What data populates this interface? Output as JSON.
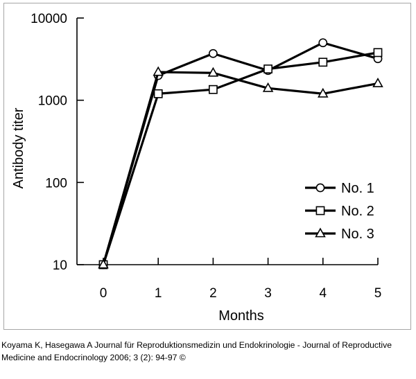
{
  "chart_data": {
    "type": "line",
    "xlabel": "Months",
    "ylabel": "Antibody  titer",
    "x": [
      0,
      1,
      2,
      3,
      4,
      5
    ],
    "xlim": [
      0,
      5
    ],
    "yscale": "log",
    "ylim": [
      10,
      10000
    ],
    "y_ticks": [
      10,
      100,
      1000,
      10000
    ],
    "y_tick_labels": [
      "10",
      "100",
      "1000",
      "10000"
    ],
    "x_tick_labels": [
      "0",
      "1",
      "2",
      "3",
      "4",
      "5"
    ],
    "legend_position": "lower-right",
    "grid": false,
    "series": [
      {
        "name": "No. 1",
        "marker": "circle",
        "values": [
          10,
          2000,
          3700,
          2300,
          5000,
          3200
        ]
      },
      {
        "name": "No. 2",
        "marker": "square",
        "values": [
          10,
          1200,
          1350,
          2400,
          2900,
          3800
        ]
      },
      {
        "name": "No. 3",
        "marker": "triangle",
        "values": [
          10,
          2200,
          2150,
          1400,
          1200,
          1600
        ]
      }
    ]
  },
  "caption": "Koyama K, Hasegawa A Journal für Reproduktionsmedizin und Endokrinologie - Journal of Reproductive Medicine and Endocrinology 2006; 3 (2): 94-97 ©"
}
